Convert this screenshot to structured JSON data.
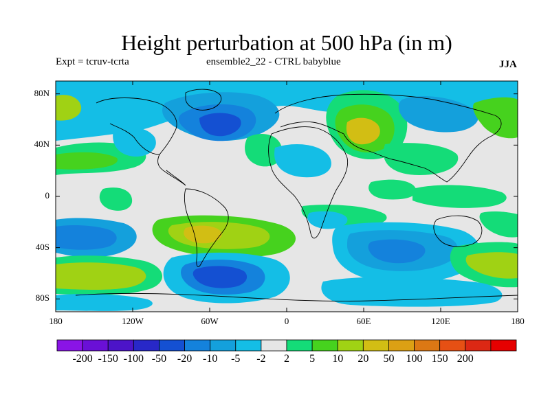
{
  "title": "Height perturbation at 500 hPa (in m)",
  "left_subtitle": "Expt = tcruv-tcrta",
  "center_subtitle": "ensemble2_22 - CTRL babyblue",
  "right_subtitle": "JJA",
  "axes": {
    "lat_labels": [
      "80N",
      "40N",
      "0",
      "40S",
      "80S"
    ],
    "lat_values": [
      80,
      40,
      0,
      -40,
      -80
    ],
    "lon_labels": [
      "180",
      "120W",
      "60W",
      "0",
      "60E",
      "120E",
      "180"
    ],
    "lon_values": [
      -180,
      -120,
      -60,
      0,
      60,
      120,
      180
    ],
    "lat_range": [
      -90,
      90
    ],
    "lon_range": [
      -180,
      180
    ]
  },
  "colorbar": {
    "colors": [
      "#8a14e6",
      "#6a10d6",
      "#4c14c8",
      "#2828c8",
      "#1450d2",
      "#1482dc",
      "#14a0dc",
      "#14bee6",
      "#e6e6e6",
      "#14dc78",
      "#46d21e",
      "#a0d214",
      "#d2be14",
      "#dca014",
      "#dc7814",
      "#e65014",
      "#dc2814",
      "#e60000"
    ],
    "labels": [
      "-200",
      "-150",
      "-100",
      "-50",
      "-20",
      "-10",
      "-5",
      "-2",
      "2",
      "5",
      "10",
      "20",
      "50",
      "100",
      "150",
      "200"
    ]
  }
}
